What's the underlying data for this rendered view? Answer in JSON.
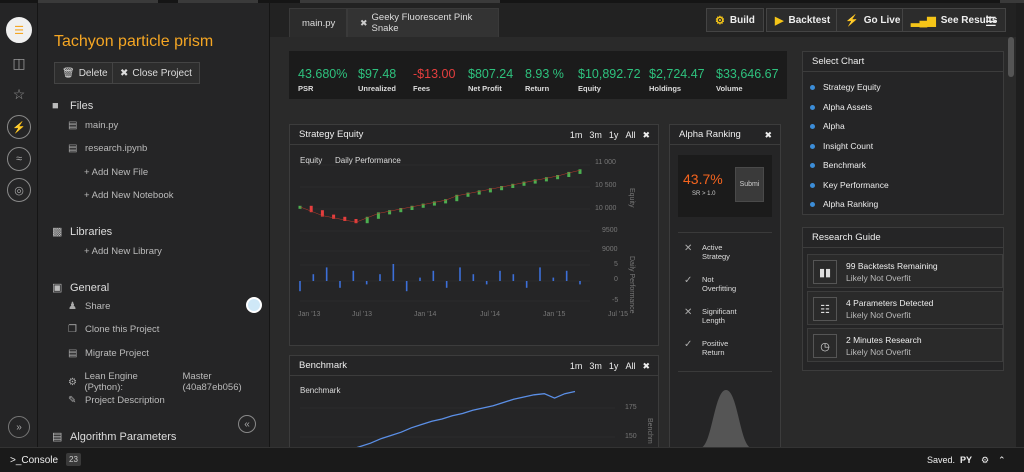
{
  "project": {
    "title": "Tachyon particle prism",
    "delete_label": "Delete",
    "close_label": "Close Project"
  },
  "files": {
    "section_label": "Files",
    "items": [
      "main.py",
      "research.ipynb"
    ],
    "add_file": "+ Add New File",
    "add_notebook": "+ Add New Notebook"
  },
  "libraries": {
    "section_label": "Libraries",
    "add_library": "+ Add New Library"
  },
  "general": {
    "section_label": "General",
    "share": "Share",
    "clone": "Clone this Project",
    "migrate": "Migrate Project",
    "lean_engine": "Lean Engine (Python):",
    "lean_engine_value": "Master (40a87eb056)",
    "description": "Project Description"
  },
  "algorithm_parameters": "Algorithm Parameters",
  "tabs": {
    "file_tab": "main.py",
    "backtest_tab": "Geeky Fluorescent Pink Snake"
  },
  "toolbar": {
    "build": "Build",
    "backtest": "Backtest",
    "go_live": "Go Live",
    "see_results": "See Results"
  },
  "stats": [
    {
      "value": "43.680%",
      "label": "PSR",
      "color": "#2ec27e"
    },
    {
      "value": "$97.48",
      "label": "Unrealized",
      "color": "#2ec27e"
    },
    {
      "value": "-$13.00",
      "label": "Fees",
      "color": "#e53e3e"
    },
    {
      "value": "$807.24",
      "label": "Net Profit",
      "color": "#2ec27e"
    },
    {
      "value": "8.93 %",
      "label": "Return",
      "color": "#2ec27e"
    },
    {
      "value": "$10,892.72",
      "label": "Equity",
      "color": "#2ec27e"
    },
    {
      "value": "$2,724.47",
      "label": "Holdings",
      "color": "#2ec27e"
    },
    {
      "value": "$33,646.67",
      "label": "Volume",
      "color": "#2ec27e"
    }
  ],
  "strategy_equity": {
    "title": "Strategy Equity",
    "ranges": [
      "1m",
      "3m",
      "1y",
      "All"
    ],
    "legend_equity": "Equity",
    "legend_daily": "Daily Performance",
    "y_label_equity": "Equity",
    "y_label_daily": "Daily Performance"
  },
  "benchmark": {
    "title": "Benchmark",
    "ranges": [
      "1m",
      "3m",
      "1y",
      "All"
    ],
    "legend": "Benchmark",
    "y_label": "Benchm"
  },
  "alpha_ranking": {
    "title": "Alpha Ranking",
    "value": "43.7%",
    "sub": "SR > 1.0",
    "submit": "Submi",
    "checks": [
      {
        "mark": "x",
        "text": [
          "Active",
          "Strategy"
        ]
      },
      {
        "mark": "check",
        "text": [
          "Not",
          "Overfitting"
        ]
      },
      {
        "mark": "x",
        "text": [
          "Significant",
          "Length"
        ]
      },
      {
        "mark": "check",
        "text": [
          "Positive",
          "Return"
        ]
      }
    ]
  },
  "select_chart": {
    "title": "Select Chart",
    "options": [
      "Strategy Equity",
      "Alpha Assets",
      "Alpha",
      "Insight Count",
      "Benchmark",
      "Key Performance",
      "Alpha Ranking"
    ]
  },
  "research_guide": {
    "title": "Research Guide",
    "items": [
      {
        "title": "99 Backtests Remaining",
        "sub": "Likely Not Overfit",
        "icon": "battery-icon"
      },
      {
        "title": "4 Parameters Detected",
        "sub": "Likely Not Overfit",
        "icon": "sliders-icon"
      },
      {
        "title": "2 Minutes Research",
        "sub": "Likely Not Overfit",
        "icon": "clock-icon"
      }
    ]
  },
  "statusbar": {
    "console": ">_Console",
    "badge": "23",
    "saved": "Saved.",
    "lang": "PY"
  },
  "chart_data": [
    {
      "type": "candlestick",
      "title": "Strategy Equity",
      "series": [
        {
          "name": "Equity",
          "values": [
            10050,
            9950,
            9850,
            9800,
            9750,
            9700,
            9800,
            9900,
            9950,
            10000,
            10050,
            10100,
            10150,
            10200,
            10300,
            10350,
            10400,
            10450,
            10500,
            10550,
            10600,
            10650,
            10700,
            10750,
            10820,
            10880
          ]
        }
      ],
      "ylim": [
        9000,
        11000
      ],
      "yticks": [
        "11 000",
        "10 500",
        "10 000",
        "9500",
        "9000"
      ],
      "xticks": [
        "Jan '13",
        "Jul '13",
        "Jan '14",
        "Jul '14",
        "Jan '15",
        "Jul '15"
      ]
    },
    {
      "type": "bar",
      "title": "Daily Performance",
      "series": [
        {
          "name": "Daily Performance",
          "values": [
            -3,
            2,
            4,
            -2,
            3,
            -1,
            2,
            5,
            -3,
            1,
            3,
            -2,
            4,
            2,
            -1,
            3,
            2,
            -2,
            4,
            1,
            3,
            -1
          ]
        }
      ],
      "ylim": [
        -5,
        5
      ],
      "yticks": [
        "5",
        "0",
        "-5"
      ]
    },
    {
      "type": "line",
      "title": "Benchmark",
      "series": [
        {
          "name": "Benchmark",
          "values": [
            132,
            135,
            138,
            142,
            145,
            148,
            152,
            155,
            158,
            160,
            163,
            165,
            168,
            170,
            172,
            175,
            178,
            180,
            182,
            183,
            179,
            183,
            185
          ]
        }
      ],
      "ylim": [
        130,
        190
      ],
      "yticks": [
        "175",
        "150"
      ]
    }
  ]
}
